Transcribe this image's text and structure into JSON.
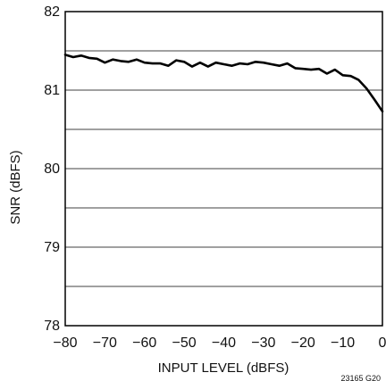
{
  "chart_data": {
    "type": "line",
    "xlabel": "INPUT LEVEL (dBFS)",
    "ylabel": "SNR (dBFS)",
    "xlim": [
      -80,
      0
    ],
    "ylim": [
      78,
      82
    ],
    "x_ticks": [
      -80,
      -70,
      -60,
      -50,
      -40,
      -30,
      -20,
      -10,
      0
    ],
    "y_ticks": [
      78,
      79,
      80,
      81,
      82
    ],
    "x_tick_labels": [
      "−80",
      "−70",
      "−60",
      "−50",
      "−40",
      "−30",
      "−20",
      "−10",
      "0"
    ],
    "y_tick_labels": [
      "78",
      "79",
      "80",
      "81",
      "82"
    ],
    "grid": {
      "horizontal_step": 0.5,
      "vertical": false
    },
    "figure_id": "23165 G20",
    "series": [
      {
        "x": [
          -80,
          -78,
          -76,
          -74,
          -72,
          -70,
          -68,
          -66,
          -64,
          -62,
          -60,
          -58,
          -56,
          -54,
          -52,
          -50,
          -48,
          -46,
          -44,
          -42,
          -40,
          -38,
          -36,
          -34,
          -32,
          -30,
          -28,
          -26,
          -24,
          -22,
          -20,
          -18,
          -16,
          -14,
          -12,
          -10,
          -8,
          -6,
          -4,
          -2,
          0
        ],
        "y": [
          81.45,
          81.42,
          81.44,
          81.41,
          81.4,
          81.35,
          81.39,
          81.37,
          81.36,
          81.39,
          81.35,
          81.34,
          81.34,
          81.31,
          81.38,
          81.36,
          81.3,
          81.35,
          81.3,
          81.35,
          81.33,
          81.31,
          81.34,
          81.33,
          81.36,
          81.35,
          81.33,
          81.31,
          81.34,
          81.28,
          81.27,
          81.26,
          81.27,
          81.21,
          81.26,
          81.19,
          81.18,
          81.13,
          81.02,
          80.88,
          80.73
        ]
      }
    ],
    "color": "#000000",
    "line_color": "#000000"
  }
}
